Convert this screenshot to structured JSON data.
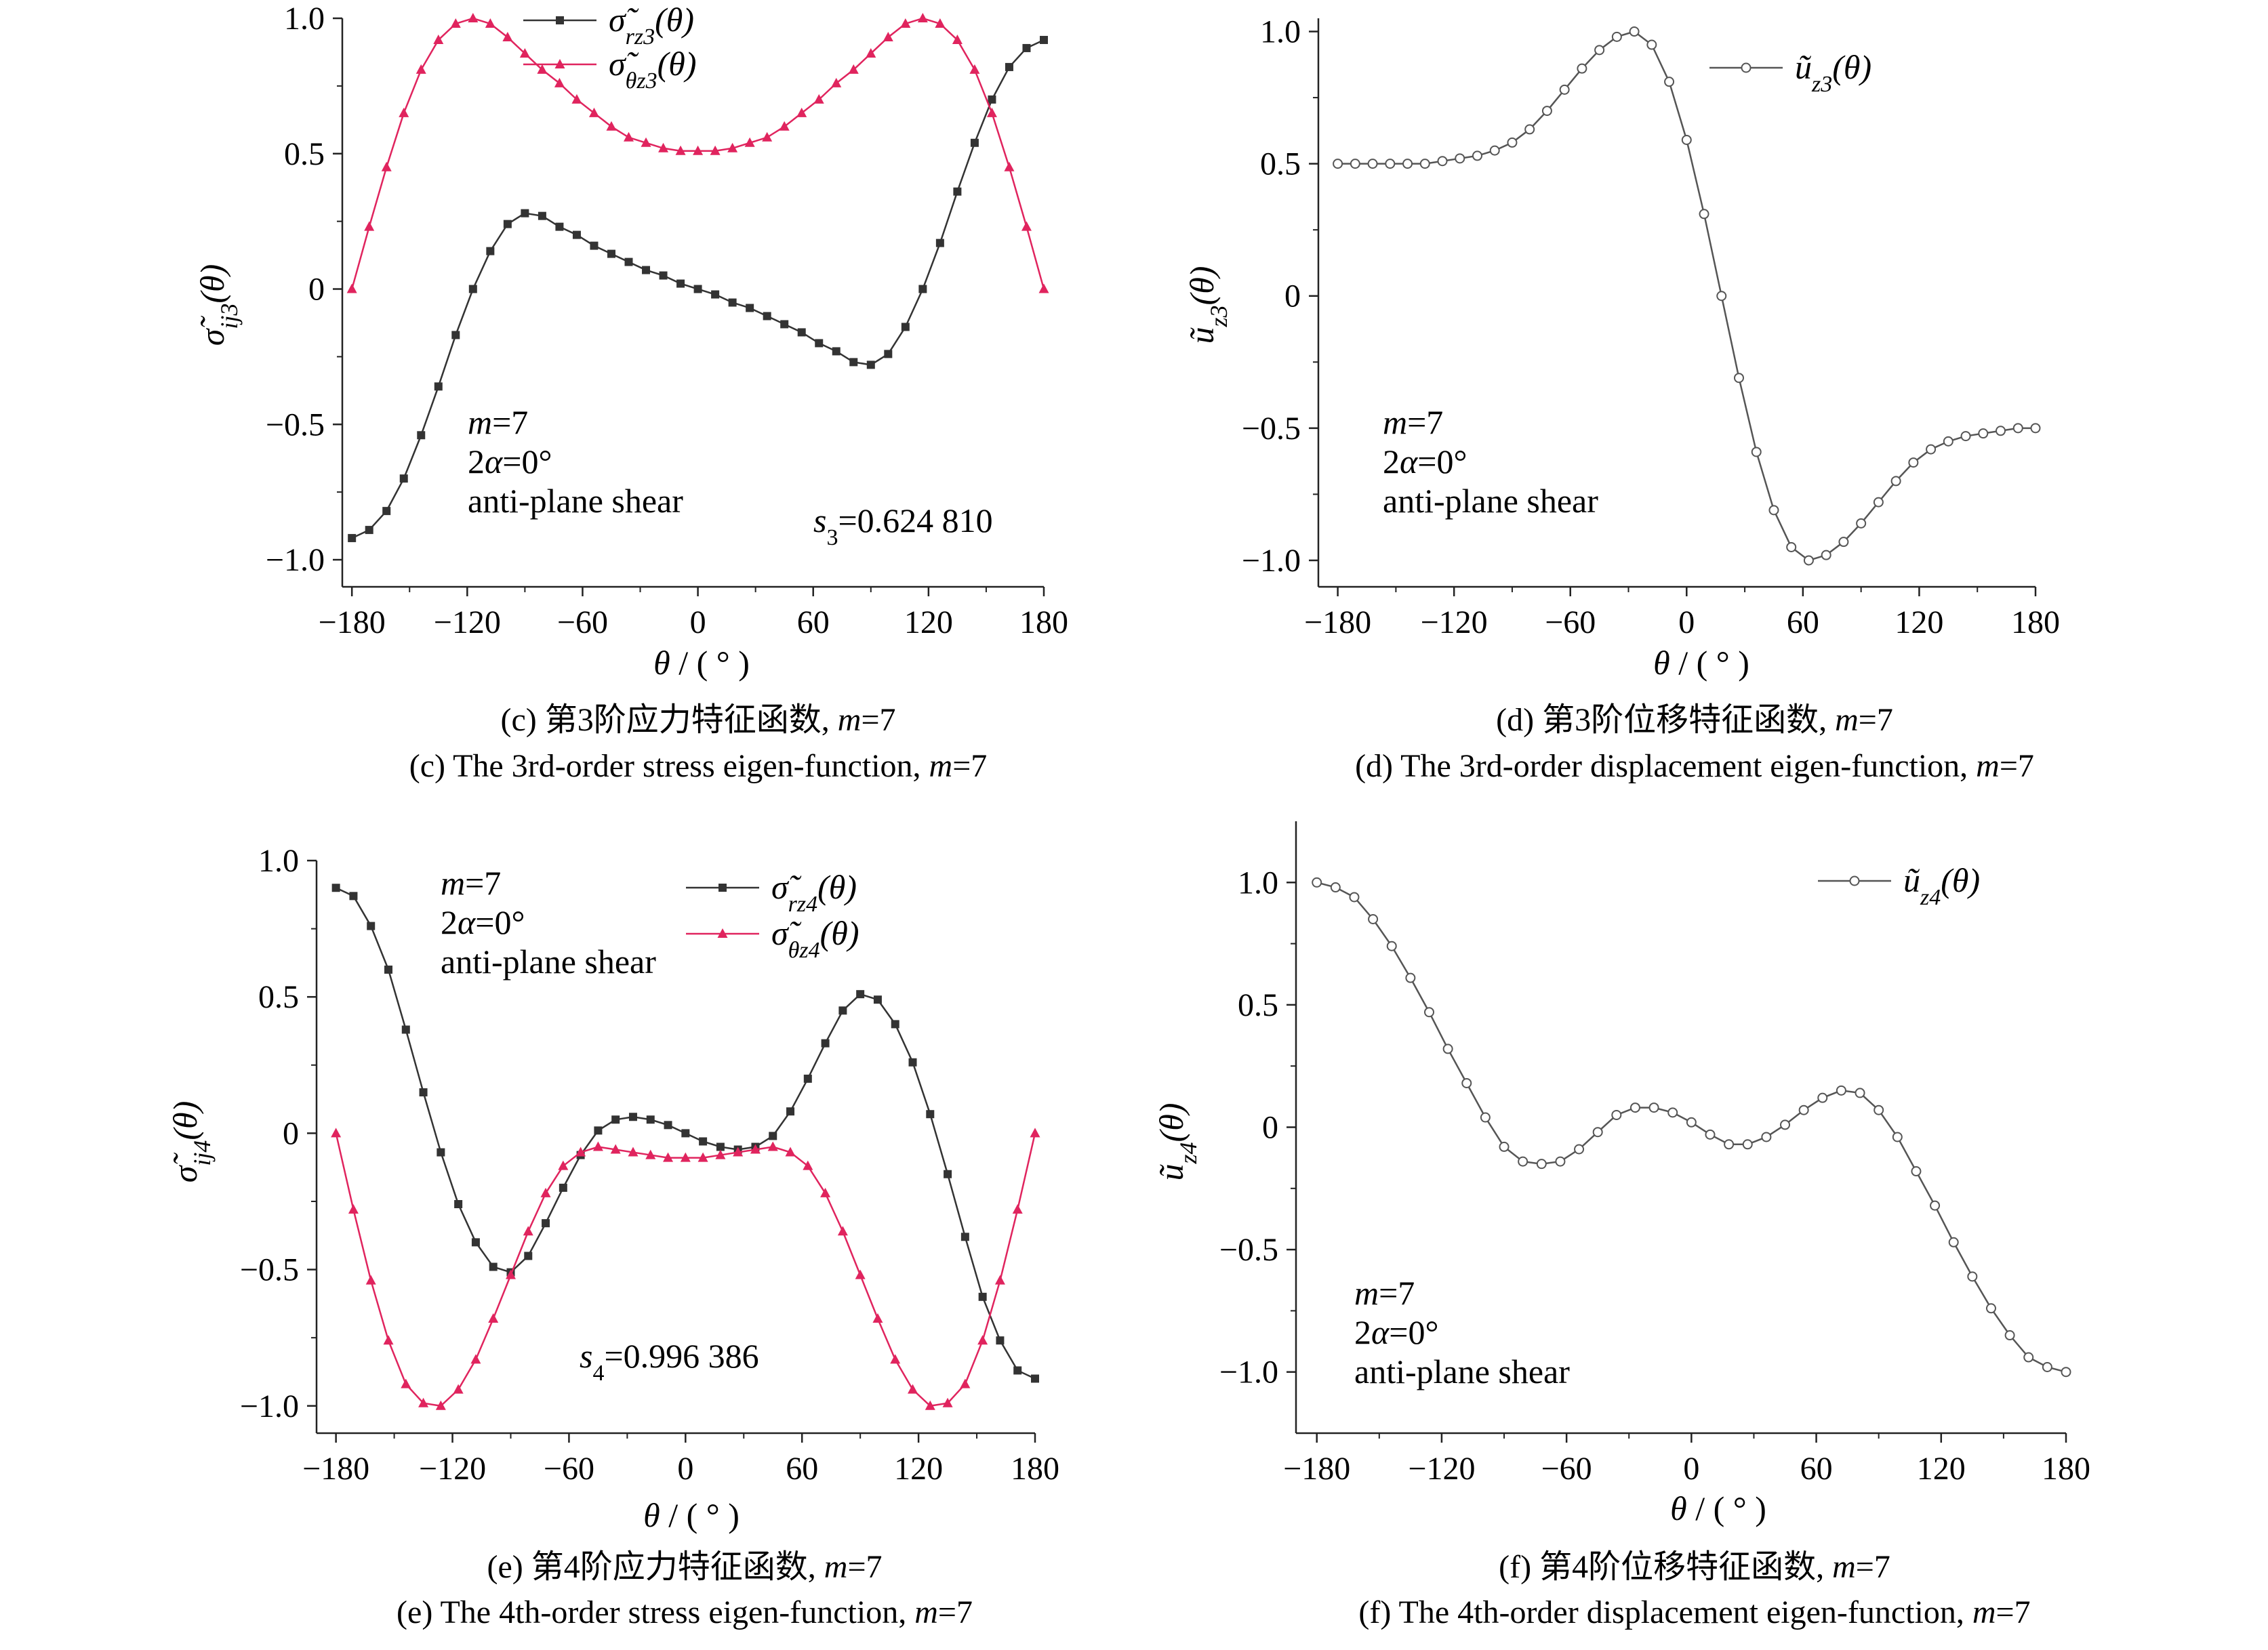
{
  "chart_data": [
    {
      "id": "c",
      "type": "line",
      "caption_cn": "(c) 第3阶应力特征函数, ",
      "caption_en": "(c) The 3rd-order stress eigen-function, ",
      "caption_m": "m=7",
      "ylabel": "σ̃ij3(θ)",
      "xlabel": "θ / ( ° )",
      "xlim": [
        -185,
        180
      ],
      "ylim": [
        -1.1,
        1.0
      ],
      "xticks": [
        "-180",
        "-120",
        "-60",
        "0",
        "60",
        "120",
        "180"
      ],
      "xtick_values": [
        -180,
        -120,
        -60,
        0,
        60,
        120,
        180
      ],
      "yticks": [
        "1.0",
        "0.5",
        "0",
        "-0.5",
        "-1.0"
      ],
      "ytick_values": [
        1.0,
        0.5,
        0,
        -0.5,
        -1.0
      ],
      "legend_position": "top-center",
      "annotation": [
        "m=7",
        "2α=0°",
        "anti-plane shear"
      ],
      "annotation_position": "bottom-left",
      "eigen_label": "s3=0.624 810",
      "series": [
        {
          "name": "σ̃rz3(θ)",
          "marker": "square",
          "color": "#333333",
          "x": [
            -180,
            -171,
            -162,
            -153,
            -144,
            -135,
            -126,
            -117,
            -108,
            -99,
            -90,
            -81,
            -72,
            -63,
            -54,
            -45,
            -36,
            -27,
            -18,
            -9,
            0,
            9,
            18,
            27,
            36,
            45,
            54,
            63,
            72,
            81,
            90,
            99,
            108,
            117,
            126,
            135,
            144,
            153,
            162,
            171,
            180
          ],
          "y": [
            -0.92,
            -0.89,
            -0.82,
            -0.7,
            -0.54,
            -0.36,
            -0.17,
            0.0,
            0.14,
            0.24,
            0.28,
            0.27,
            0.23,
            0.2,
            0.16,
            0.13,
            0.1,
            0.07,
            0.05,
            0.02,
            0.0,
            -0.02,
            -0.05,
            -0.07,
            -0.1,
            -0.13,
            -0.16,
            -0.2,
            -0.23,
            -0.27,
            -0.28,
            -0.24,
            -0.14,
            0.0,
            0.17,
            0.36,
            0.54,
            0.7,
            0.82,
            0.89,
            0.92
          ]
        },
        {
          "name": "σ̃θz3(θ)",
          "marker": "triangle",
          "color": "#e0245e",
          "x": [
            -180,
            -171,
            -162,
            -153,
            -144,
            -135,
            -126,
            -117,
            -108,
            -99,
            -90,
            -81,
            -72,
            -63,
            -54,
            -45,
            -36,
            -27,
            -18,
            -9,
            0,
            9,
            18,
            27,
            36,
            45,
            54,
            63,
            72,
            81,
            90,
            99,
            108,
            117,
            126,
            135,
            144,
            153,
            162,
            171,
            180
          ],
          "y": [
            0.0,
            0.23,
            0.45,
            0.65,
            0.81,
            0.92,
            0.98,
            1.0,
            0.98,
            0.93,
            0.87,
            0.81,
            0.76,
            0.7,
            0.65,
            0.6,
            0.56,
            0.54,
            0.52,
            0.51,
            0.51,
            0.51,
            0.52,
            0.54,
            0.56,
            0.6,
            0.65,
            0.7,
            0.76,
            0.81,
            0.87,
            0.93,
            0.98,
            1.0,
            0.98,
            0.92,
            0.81,
            0.65,
            0.45,
            0.23,
            0.0
          ]
        }
      ]
    },
    {
      "id": "d",
      "type": "line",
      "caption_cn": "(d) 第3阶位移特征函数, ",
      "caption_en": "(d) The 3rd-order displacement eigen-function, ",
      "caption_m": "m=7",
      "ylabel": "ũz3(θ)",
      "xlabel": "θ / ( ° )",
      "xlim": [
        -190,
        180
      ],
      "ylim": [
        -1.1,
        1.05
      ],
      "xticks": [
        "-180",
        "-120",
        "-60",
        "0",
        "60",
        "120",
        "180"
      ],
      "xtick_values": [
        -180,
        -120,
        -60,
        0,
        60,
        120,
        180
      ],
      "yticks": [
        "1.0",
        "0.5",
        "0",
        "-0.5",
        "-1.0"
      ],
      "ytick_values": [
        1.0,
        0.5,
        0,
        -0.5,
        -1.0
      ],
      "legend_position": "top-right",
      "annotation": [
        "m=7",
        "2α=0°",
        "anti-plane shear"
      ],
      "annotation_position": "bottom-left",
      "series": [
        {
          "name": "ũz3(θ)",
          "marker": "circle",
          "color": "#555555",
          "x": [
            -180,
            -171,
            -162,
            -153,
            -144,
            -135,
            -126,
            -117,
            -108,
            -99,
            -90,
            -81,
            -72,
            -63,
            -54,
            -45,
            -36,
            -27,
            -18,
            -9,
            0,
            9,
            18,
            27,
            36,
            45,
            54,
            63,
            72,
            81,
            90,
            99,
            108,
            117,
            126,
            135,
            144,
            153,
            162,
            171,
            180
          ],
          "y": [
            0.5,
            0.5,
            0.5,
            0.5,
            0.5,
            0.5,
            0.51,
            0.52,
            0.53,
            0.55,
            0.58,
            0.63,
            0.7,
            0.78,
            0.86,
            0.93,
            0.98,
            1.0,
            0.95,
            0.81,
            0.59,
            0.31,
            0.0,
            -0.31,
            -0.59,
            -0.81,
            -0.95,
            -1.0,
            -0.98,
            -0.93,
            -0.86,
            -0.78,
            -0.7,
            -0.63,
            -0.58,
            -0.55,
            -0.53,
            -0.52,
            -0.51,
            -0.5,
            -0.5
          ]
        }
      ]
    },
    {
      "id": "e",
      "type": "line",
      "caption_cn": "(e) 第4阶应力特征函数, ",
      "caption_en": "(e) The 4th-order stress eigen-function, ",
      "caption_m": "m=7",
      "ylabel": "σ̃ij4(θ)",
      "xlabel": "θ / ( ° )",
      "xlim": [
        -190,
        180
      ],
      "ylim": [
        -1.1,
        1.0
      ],
      "xticks": [
        "-180",
        "-120",
        "-60",
        "0",
        "60",
        "120",
        "180"
      ],
      "xtick_values": [
        -180,
        -120,
        -60,
        0,
        60,
        120,
        180
      ],
      "yticks": [
        "1.0",
        "0.5",
        "0",
        "-0.5",
        "-1.0"
      ],
      "ytick_values": [
        1.0,
        0.5,
        0,
        -0.5,
        -1.0
      ],
      "legend_position": "top-right",
      "annotation": [
        "m=7",
        "2α=0°",
        "anti-plane shear"
      ],
      "annotation_position": "top-left",
      "eigen_label": "s4=0.996 386",
      "series": [
        {
          "name": "σ̃rz4(θ)",
          "marker": "square",
          "color": "#333333",
          "x": [
            -180,
            -171,
            -162,
            -153,
            -144,
            -135,
            -126,
            -117,
            -108,
            -99,
            -90,
            -81,
            -72,
            -63,
            -54,
            -45,
            -36,
            -27,
            -18,
            -9,
            0,
            9,
            18,
            27,
            36,
            45,
            54,
            63,
            72,
            81,
            90,
            99,
            108,
            117,
            126,
            135,
            144,
            153,
            162,
            171,
            180
          ],
          "y": [
            0.9,
            0.87,
            0.76,
            0.6,
            0.38,
            0.15,
            -0.07,
            -0.26,
            -0.4,
            -0.49,
            -0.51,
            -0.45,
            -0.33,
            -0.2,
            -0.08,
            0.01,
            0.05,
            0.06,
            0.05,
            0.03,
            0.0,
            -0.03,
            -0.05,
            -0.06,
            -0.05,
            -0.01,
            0.08,
            0.2,
            0.33,
            0.45,
            0.51,
            0.49,
            0.4,
            0.26,
            0.07,
            -0.15,
            -0.38,
            -0.6,
            -0.76,
            -0.87,
            -0.9
          ]
        },
        {
          "name": "σ̃θz4(θ)",
          "marker": "triangle",
          "color": "#e0245e",
          "x": [
            -180,
            -171,
            -162,
            -153,
            -144,
            -135,
            -126,
            -117,
            -108,
            -99,
            -90,
            -81,
            -72,
            -63,
            -54,
            -45,
            -36,
            -27,
            -18,
            -9,
            0,
            9,
            18,
            27,
            36,
            45,
            54,
            63,
            72,
            81,
            90,
            99,
            108,
            117,
            126,
            135,
            144,
            153,
            162,
            171,
            180
          ],
          "y": [
            0.0,
            -0.28,
            -0.54,
            -0.76,
            -0.92,
            -0.99,
            -1.0,
            -0.94,
            -0.83,
            -0.68,
            -0.52,
            -0.36,
            -0.22,
            -0.12,
            -0.07,
            -0.05,
            -0.06,
            -0.07,
            -0.08,
            -0.09,
            -0.09,
            -0.09,
            -0.08,
            -0.07,
            -0.06,
            -0.05,
            -0.07,
            -0.12,
            -0.22,
            -0.36,
            -0.52,
            -0.68,
            -0.83,
            -0.94,
            -1.0,
            -0.99,
            -0.92,
            -0.76,
            -0.54,
            -0.28,
            0.0
          ]
        }
      ]
    },
    {
      "id": "f",
      "type": "line",
      "caption_cn": "(f) 第4阶位移特征函数, ",
      "caption_en": "(f) The 4th-order displacement eigen-function, ",
      "caption_m": "m=7",
      "ylabel": "ũz4(θ)",
      "xlabel": "θ / ( ° )",
      "xlim": [
        -190,
        180
      ],
      "ylim": [
        -1.25,
        1.25
      ],
      "xticks": [
        "-180",
        "-120",
        "-60",
        "0",
        "60",
        "120",
        "180"
      ],
      "xtick_values": [
        -180,
        -120,
        -60,
        0,
        60,
        120,
        180
      ],
      "yticks": [
        "1.0",
        "0.5",
        "0",
        "-0.5",
        "-1.0"
      ],
      "ytick_values": [
        1.0,
        0.5,
        0,
        -0.5,
        -1.0
      ],
      "legend_position": "top-right",
      "annotation": [
        "m=7",
        "2α=0°",
        "anti-plane shear"
      ],
      "annotation_position": "bottom-left",
      "series": [
        {
          "name": "ũz4(θ)",
          "marker": "circle",
          "color": "#555555",
          "x": [
            -180,
            -171,
            -162,
            -153,
            -144,
            -135,
            -126,
            -117,
            -108,
            -99,
            -90,
            -81,
            -72,
            -63,
            -54,
            -45,
            -36,
            -27,
            -18,
            -9,
            0,
            9,
            18,
            27,
            36,
            45,
            54,
            63,
            72,
            81,
            90,
            99,
            108,
            117,
            126,
            135,
            144,
            153,
            162,
            171,
            180
          ],
          "y": [
            1.0,
            0.98,
            0.94,
            0.85,
            0.74,
            0.61,
            0.47,
            0.32,
            0.18,
            0.04,
            -0.08,
            -0.14,
            -0.15,
            -0.14,
            -0.09,
            -0.02,
            0.05,
            0.08,
            0.08,
            0.06,
            0.02,
            -0.03,
            -0.07,
            -0.07,
            -0.04,
            0.01,
            0.07,
            0.12,
            0.15,
            0.14,
            0.07,
            -0.04,
            -0.18,
            -0.32,
            -0.47,
            -0.61,
            -0.74,
            -0.85,
            -0.94,
            -0.98,
            -1.0
          ]
        }
      ]
    }
  ]
}
